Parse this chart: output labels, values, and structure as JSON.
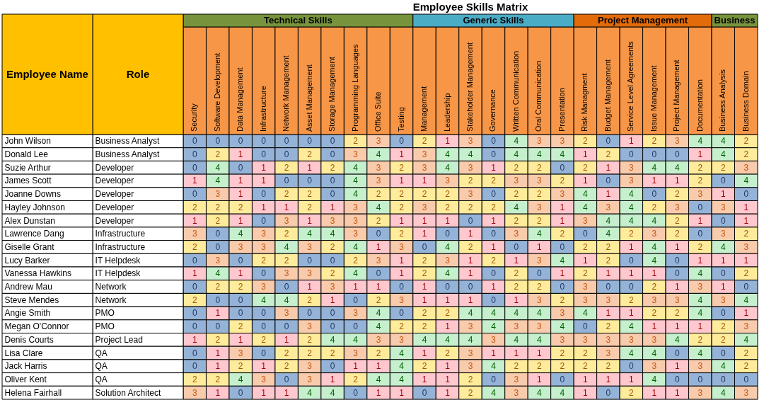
{
  "chart_data": {
    "type": "heatmap",
    "title": "Employee Skills Matrix",
    "ylabel": "Role",
    "y2label": "Employee Name",
    "categories": [
      "Security",
      "Software Development",
      "Data Management",
      "Infrastructure",
      "Network Management",
      "Asset Management",
      "Storage Management",
      "Programming Languages",
      "Office Suite",
      "Testing",
      "Management",
      "Leadership",
      "Stakeholder Management",
      "Governance",
      "Written Communication",
      "Oral Communication",
      "Presentation",
      "Risk Managment",
      "Budget Management",
      "Service Level Agreements",
      "Issue Management",
      "Project Management",
      "Documentation",
      "Business Analysis",
      "Business Domain"
    ],
    "y2_categories": [
      "John Wilson",
      "Donald Lee",
      "Suzie Arthur",
      "James Scott",
      "Joanne Downs",
      "Hayley Johnson",
      "Alex Dunstan",
      "Lawrence Dang",
      "Giselle Grant",
      "Lucy Barker",
      "Vanessa Hawkins",
      "Andrew Mau",
      "Steve Mendes",
      "Angie Smith",
      "Megan O'Connor",
      "Denis Courts",
      "Lisa Clare",
      "Jack Harris",
      "Oliver Kent",
      "Helena Fairhall"
    ],
    "y_categories": [
      "Business Analyst",
      "Business Analyst",
      "Developer",
      "Developer",
      "Developer",
      "Developer",
      "Developer",
      "Infrastructure",
      "Infrastructure",
      "IT Helpdesk",
      "IT Helpdesk",
      "Network",
      "Network",
      "PMO",
      "PMO",
      "Project Lead",
      "QA",
      "QA",
      "QA",
      "Solution Architect"
    ],
    "cells": [
      [
        0,
        0,
        0,
        0,
        0,
        0,
        0,
        2,
        3,
        0,
        2,
        1,
        3,
        0,
        4,
        3,
        3,
        2,
        0,
        1,
        2,
        3,
        4,
        4,
        2
      ],
      [
        0,
        2,
        1,
        0,
        0,
        2,
        0,
        3,
        4,
        1,
        3,
        4,
        4,
        0,
        4,
        4,
        4,
        1,
        2,
        0,
        0,
        0,
        1,
        4,
        2
      ],
      [
        0,
        4,
        0,
        1,
        2,
        1,
        2,
        4,
        3,
        2,
        3,
        4,
        3,
        1,
        2,
        2,
        0,
        2,
        1,
        3,
        4,
        4,
        2,
        2,
        3
      ],
      [
        1,
        4,
        1,
        1,
        0,
        0,
        0,
        4,
        3,
        1,
        1,
        3,
        2,
        2,
        3,
        3,
        2,
        1,
        0,
        3,
        1,
        1,
        2,
        0,
        4
      ],
      [
        0,
        3,
        1,
        0,
        2,
        2,
        0,
        4,
        2,
        2,
        2,
        2,
        3,
        0,
        2,
        2,
        3,
        4,
        1,
        4,
        0,
        2,
        3,
        1,
        0
      ],
      [
        2,
        2,
        2,
        1,
        1,
        2,
        1,
        3,
        4,
        2,
        3,
        2,
        2,
        2,
        4,
        3,
        1,
        4,
        3,
        4,
        2,
        3,
        0,
        3,
        1
      ],
      [
        1,
        2,
        1,
        0,
        3,
        1,
        3,
        3,
        2,
        1,
        1,
        1,
        0,
        1,
        2,
        2,
        1,
        3,
        4,
        4,
        4,
        2,
        1,
        0,
        1
      ],
      [
        3,
        0,
        4,
        3,
        2,
        4,
        4,
        3,
        0,
        2,
        1,
        0,
        1,
        0,
        3,
        4,
        2,
        0,
        4,
        2,
        3,
        2,
        0,
        3,
        2
      ],
      [
        2,
        0,
        3,
        3,
        4,
        3,
        2,
        4,
        1,
        3,
        0,
        4,
        2,
        1,
        0,
        1,
        0,
        2,
        2,
        1,
        4,
        1,
        2,
        4,
        3
      ],
      [
        0,
        3,
        0,
        2,
        2,
        0,
        0,
        2,
        3,
        1,
        2,
        3,
        1,
        2,
        1,
        3,
        4,
        1,
        2,
        0,
        4,
        0,
        1,
        1,
        1
      ],
      [
        1,
        4,
        1,
        0,
        3,
        3,
        2,
        4,
        0,
        1,
        2,
        4,
        1,
        0,
        2,
        0,
        1,
        2,
        1,
        1,
        1,
        0,
        4,
        0,
        2
      ],
      [
        0,
        2,
        2,
        3,
        0,
        1,
        3,
        1,
        1,
        0,
        1,
        0,
        0,
        1,
        2,
        2,
        0,
        3,
        0,
        0,
        2,
        1,
        3,
        1,
        0
      ],
      [
        2,
        0,
        0,
        4,
        4,
        2,
        1,
        0,
        2,
        3,
        1,
        1,
        1,
        0,
        1,
        3,
        2,
        3,
        3,
        2,
        3,
        3,
        4,
        3,
        4
      ],
      [
        0,
        1,
        0,
        0,
        3,
        0,
        0,
        3,
        4,
        0,
        2,
        2,
        4,
        4,
        4,
        4,
        3,
        4,
        1,
        1,
        2,
        2,
        4,
        0,
        1
      ],
      [
        0,
        0,
        2,
        0,
        0,
        3,
        0,
        0,
        4,
        2,
        2,
        1,
        3,
        4,
        3,
        3,
        4,
        0,
        2,
        4,
        1,
        1,
        1,
        2,
        3
      ],
      [
        1,
        2,
        1,
        2,
        1,
        2,
        4,
        4,
        3,
        3,
        4,
        4,
        4,
        3,
        4,
        4,
        3,
        3,
        3,
        3,
        3,
        4,
        2,
        2,
        4
      ],
      [
        0,
        1,
        3,
        0,
        2,
        2,
        2,
        3,
        2,
        4,
        1,
        2,
        3,
        1,
        1,
        1,
        2,
        2,
        3,
        4,
        4,
        0,
        4,
        0,
        2
      ],
      [
        0,
        1,
        2,
        1,
        2,
        3,
        0,
        1,
        1,
        4,
        2,
        1,
        3,
        4,
        2,
        2,
        2,
        2,
        2,
        0,
        3,
        1,
        3,
        4,
        2
      ],
      [
        2,
        2,
        4,
        3,
        0,
        3,
        1,
        2,
        4,
        4,
        1,
        1,
        2,
        0,
        3,
        1,
        0,
        1,
        1,
        1,
        4,
        0,
        0,
        0,
        0
      ],
      [
        3,
        1,
        0,
        1,
        1,
        4,
        4,
        0,
        1,
        1,
        0,
        1,
        2,
        4,
        3,
        4,
        4,
        1,
        0,
        2,
        1,
        1,
        3,
        4,
        3
      ]
    ],
    "colors": [
      "#95b3d7",
      "#ffc7ce",
      "#ffeb9c",
      "#f8cbad",
      "#c6efce"
    ],
    "data_labels": true,
    "annotations": [
      "Technical Skills",
      "Generic Skills",
      "Project Management",
      "Business"
    ]
  }
}
